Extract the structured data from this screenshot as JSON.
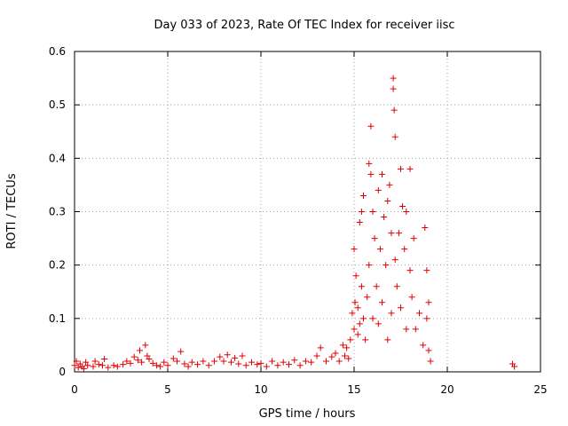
{
  "chart_data": {
    "type": "scatter",
    "title": "Day 033 of 2023, Rate Of TEC Index for receiver iisc",
    "xlabel": "GPS time / hours",
    "ylabel": "ROTI / TECUs",
    "xlim": [
      0,
      25
    ],
    "ylim": [
      0,
      0.6
    ],
    "xticks": [
      "0",
      "5",
      "10",
      "15",
      "20",
      "25"
    ],
    "yticks": [
      "0",
      "0.1",
      "0.2",
      "0.3",
      "0.4",
      "0.5",
      "0.6"
    ],
    "grid": true,
    "marker": "+",
    "color": "#e00000",
    "series": [
      {
        "name": "iisc",
        "points": [
          [
            0.0,
            0.012
          ],
          [
            0.1,
            0.02
          ],
          [
            0.2,
            0.008
          ],
          [
            0.3,
            0.015
          ],
          [
            0.4,
            0.01
          ],
          [
            0.5,
            0.006
          ],
          [
            0.6,
            0.018
          ],
          [
            0.7,
            0.012
          ],
          [
            1.0,
            0.01
          ],
          [
            1.1,
            0.02
          ],
          [
            1.3,
            0.014
          ],
          [
            1.5,
            0.012
          ],
          [
            1.6,
            0.024
          ],
          [
            1.8,
            0.008
          ],
          [
            2.1,
            0.012
          ],
          [
            2.3,
            0.01
          ],
          [
            2.6,
            0.014
          ],
          [
            2.8,
            0.02
          ],
          [
            3.0,
            0.016
          ],
          [
            3.2,
            0.028
          ],
          [
            3.4,
            0.022
          ],
          [
            3.5,
            0.04
          ],
          [
            3.6,
            0.018
          ],
          [
            3.8,
            0.05
          ],
          [
            3.9,
            0.03
          ],
          [
            4.0,
            0.024
          ],
          [
            4.2,
            0.016
          ],
          [
            4.4,
            0.012
          ],
          [
            4.6,
            0.01
          ],
          [
            4.8,
            0.018
          ],
          [
            5.0,
            0.012
          ],
          [
            5.3,
            0.025
          ],
          [
            5.5,
            0.02
          ],
          [
            5.7,
            0.038
          ],
          [
            5.9,
            0.015
          ],
          [
            6.1,
            0.01
          ],
          [
            6.3,
            0.018
          ],
          [
            6.6,
            0.014
          ],
          [
            6.9,
            0.02
          ],
          [
            7.2,
            0.012
          ],
          [
            7.5,
            0.02
          ],
          [
            7.8,
            0.028
          ],
          [
            8.0,
            0.02
          ],
          [
            8.2,
            0.032
          ],
          [
            8.4,
            0.018
          ],
          [
            8.6,
            0.026
          ],
          [
            8.8,
            0.015
          ],
          [
            9.0,
            0.03
          ],
          [
            9.2,
            0.012
          ],
          [
            9.5,
            0.018
          ],
          [
            9.8,
            0.014
          ],
          [
            10.0,
            0.016
          ],
          [
            10.3,
            0.01
          ],
          [
            10.6,
            0.02
          ],
          [
            10.9,
            0.012
          ],
          [
            11.2,
            0.018
          ],
          [
            11.5,
            0.014
          ],
          [
            11.8,
            0.022
          ],
          [
            12.1,
            0.012
          ],
          [
            12.4,
            0.02
          ],
          [
            12.7,
            0.018
          ],
          [
            13.0,
            0.03
          ],
          [
            13.2,
            0.045
          ],
          [
            13.5,
            0.02
          ],
          [
            13.8,
            0.028
          ],
          [
            14.0,
            0.035
          ],
          [
            14.2,
            0.02
          ],
          [
            14.4,
            0.05
          ],
          [
            14.5,
            0.03
          ],
          [
            14.6,
            0.045
          ],
          [
            14.7,
            0.025
          ],
          [
            14.8,
            0.06
          ],
          [
            14.9,
            0.11
          ],
          [
            15.0,
            0.08
          ],
          [
            15.0,
            0.23
          ],
          [
            15.05,
            0.13
          ],
          [
            15.1,
            0.18
          ],
          [
            15.2,
            0.07
          ],
          [
            15.2,
            0.12
          ],
          [
            15.3,
            0.28
          ],
          [
            15.3,
            0.09
          ],
          [
            15.4,
            0.3
          ],
          [
            15.4,
            0.16
          ],
          [
            15.5,
            0.33
          ],
          [
            15.5,
            0.1
          ],
          [
            15.6,
            0.06
          ],
          [
            15.7,
            0.14
          ],
          [
            15.8,
            0.39
          ],
          [
            15.8,
            0.2
          ],
          [
            15.9,
            0.46
          ],
          [
            15.9,
            0.37
          ],
          [
            16.0,
            0.3
          ],
          [
            16.0,
            0.1
          ],
          [
            16.1,
            0.25
          ],
          [
            16.2,
            0.16
          ],
          [
            16.3,
            0.34
          ],
          [
            16.3,
            0.09
          ],
          [
            16.4,
            0.23
          ],
          [
            16.5,
            0.37
          ],
          [
            16.5,
            0.13
          ],
          [
            16.6,
            0.29
          ],
          [
            16.7,
            0.2
          ],
          [
            16.8,
            0.32
          ],
          [
            16.8,
            0.06
          ],
          [
            16.9,
            0.35
          ],
          [
            17.0,
            0.26
          ],
          [
            17.0,
            0.11
          ],
          [
            17.1,
            0.55
          ],
          [
            17.1,
            0.53
          ],
          [
            17.15,
            0.49
          ],
          [
            17.2,
            0.44
          ],
          [
            17.2,
            0.21
          ],
          [
            17.3,
            0.16
          ],
          [
            17.4,
            0.26
          ],
          [
            17.5,
            0.38
          ],
          [
            17.5,
            0.12
          ],
          [
            17.6,
            0.31
          ],
          [
            17.7,
            0.23
          ],
          [
            17.8,
            0.3
          ],
          [
            17.8,
            0.08
          ],
          [
            18.0,
            0.38
          ],
          [
            18.0,
            0.19
          ],
          [
            18.1,
            0.14
          ],
          [
            18.2,
            0.25
          ],
          [
            18.3,
            0.08
          ],
          [
            18.5,
            0.11
          ],
          [
            18.7,
            0.05
          ],
          [
            18.8,
            0.27
          ],
          [
            18.9,
            0.19
          ],
          [
            18.9,
            0.1
          ],
          [
            19.0,
            0.13
          ],
          [
            19.0,
            0.04
          ],
          [
            19.1,
            0.02
          ],
          [
            23.5,
            0.015
          ],
          [
            23.6,
            0.01
          ]
        ]
      }
    ]
  }
}
